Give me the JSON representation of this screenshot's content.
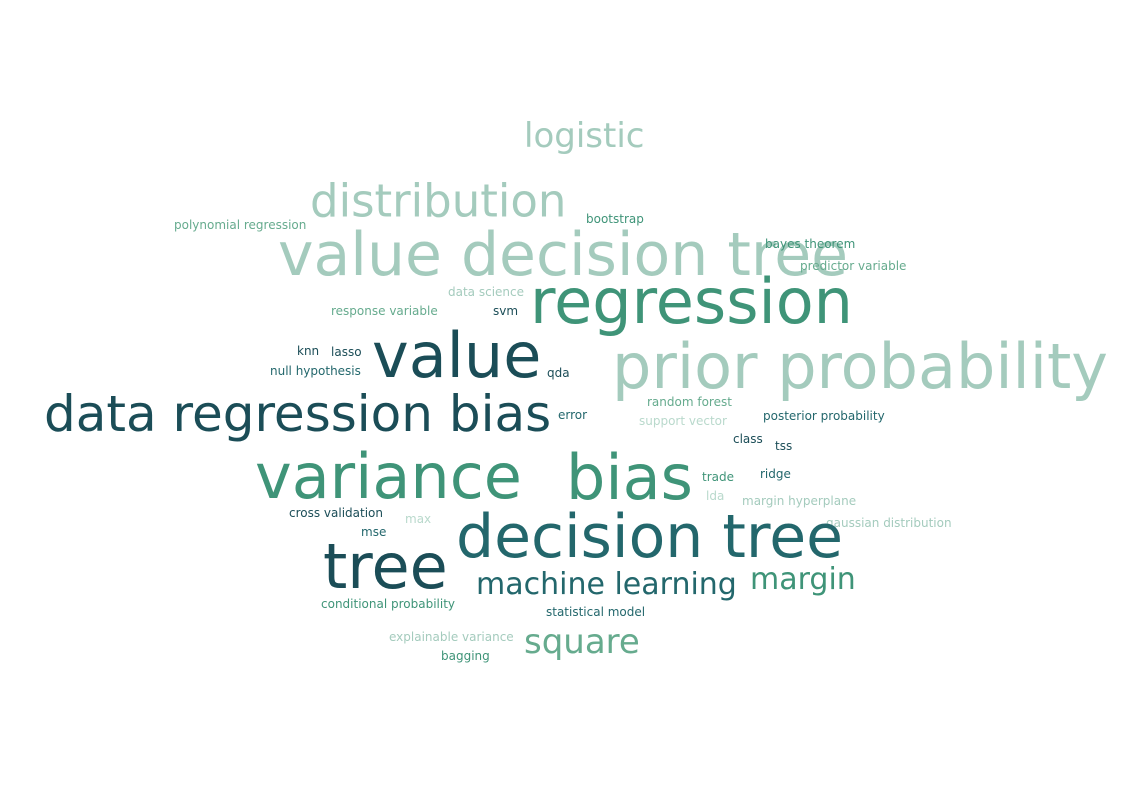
{
  "palette": {
    "dark": "#1b4d57",
    "mid_dark": "#23676c",
    "mid": "#3f9478",
    "mid_light": "#66ab8e",
    "light": "#a4cbbd",
    "pale": "#b9d9cc"
  },
  "words": [
    {
      "text": "logistic",
      "weight": 34,
      "color": "light"
    },
    {
      "text": "distribution",
      "weight": 45,
      "color": "light"
    },
    {
      "text": "polynomial regression",
      "weight": 12,
      "color": "mid_light"
    },
    {
      "text": "bootstrap",
      "weight": 12,
      "color": "mid"
    },
    {
      "text": "value decision tree",
      "weight": 60,
      "color": "light"
    },
    {
      "text": "bayes theorem",
      "weight": 12,
      "color": "mid"
    },
    {
      "text": "predictor variable",
      "weight": 12,
      "color": "mid_light"
    },
    {
      "text": "regression",
      "weight": 62,
      "color": "mid"
    },
    {
      "text": "data science",
      "weight": 12,
      "color": "light"
    },
    {
      "text": "response variable",
      "weight": 12,
      "color": "mid_light"
    },
    {
      "text": "svm",
      "weight": 12,
      "color": "dark"
    },
    {
      "text": "knn",
      "weight": 12,
      "color": "dark"
    },
    {
      "text": "lasso",
      "weight": 12,
      "color": "dark"
    },
    {
      "text": "value",
      "weight": 62,
      "color": "dark"
    },
    {
      "text": "prior probability",
      "weight": 62,
      "color": "light"
    },
    {
      "text": "null hypothesis",
      "weight": 12,
      "color": "mid_dark"
    },
    {
      "text": "qda",
      "weight": 12,
      "color": "dark"
    },
    {
      "text": "data regression bias",
      "weight": 50,
      "color": "dark"
    },
    {
      "text": "random forest",
      "weight": 12,
      "color": "mid_light"
    },
    {
      "text": "error",
      "weight": 12,
      "color": "mid_dark"
    },
    {
      "text": "support vector",
      "weight": 12,
      "color": "pale"
    },
    {
      "text": "posterior probability",
      "weight": 12,
      "color": "mid_dark"
    },
    {
      "text": "class",
      "weight": 12,
      "color": "dark"
    },
    {
      "text": "tss",
      "weight": 12,
      "color": "dark"
    },
    {
      "text": "variance",
      "weight": 62,
      "color": "mid"
    },
    {
      "text": "bias",
      "weight": 62,
      "color": "mid"
    },
    {
      "text": "trade",
      "weight": 12,
      "color": "mid"
    },
    {
      "text": "ridge",
      "weight": 12,
      "color": "mid_dark"
    },
    {
      "text": "lda",
      "weight": 12,
      "color": "pale"
    },
    {
      "text": "margin hyperplane",
      "weight": 12,
      "color": "light"
    },
    {
      "text": "cross validation",
      "weight": 12,
      "color": "dark"
    },
    {
      "text": "max",
      "weight": 12,
      "color": "pale"
    },
    {
      "text": "gaussian distribution",
      "weight": 12,
      "color": "light"
    },
    {
      "text": "mse",
      "weight": 12,
      "color": "mid_dark"
    },
    {
      "text": "decision tree",
      "weight": 60,
      "color": "mid_dark"
    },
    {
      "text": "tree",
      "weight": 62,
      "color": "dark"
    },
    {
      "text": "margin",
      "weight": 30,
      "color": "mid"
    },
    {
      "text": "machine learning",
      "weight": 30,
      "color": "mid_dark"
    },
    {
      "text": "conditional probability",
      "weight": 12,
      "color": "mid"
    },
    {
      "text": "statistical model",
      "weight": 12,
      "color": "mid_dark"
    },
    {
      "text": "square",
      "weight": 34,
      "color": "mid_light"
    },
    {
      "text": "explainable variance",
      "weight": 12,
      "color": "light"
    },
    {
      "text": "bagging",
      "weight": 12,
      "color": "mid"
    }
  ]
}
